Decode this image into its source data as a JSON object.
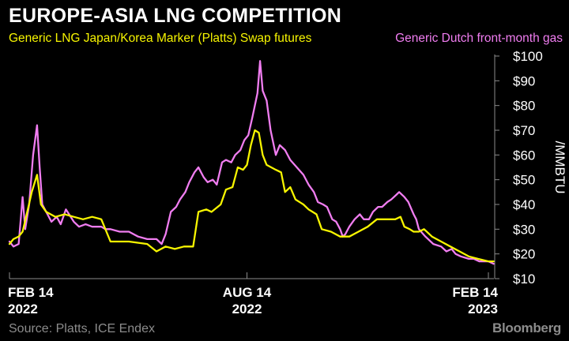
{
  "header": {
    "title": "EUROPE-ASIA LNG COMPETITION"
  },
  "footer": {
    "source": "Source: Platts, ICE Endex",
    "brand": "Bloomberg"
  },
  "colors": {
    "background": "#000000",
    "series_lng": "#f7f500",
    "series_dutch": "#f07df0",
    "axis": "#8c8c8c",
    "text": "#ffffff"
  },
  "chart_data": {
    "type": "line",
    "title": "EUROPE-ASIA LNG COMPETITION",
    "ylabel": "/MMBTU",
    "ylim": [
      10,
      100
    ],
    "y_ticks": [
      "$100",
      "$90",
      "$80",
      "$70",
      "$60",
      "$50",
      "$40",
      "$30",
      "$20",
      "$10"
    ],
    "x_ticks": [
      {
        "label": "FEB 14",
        "sublabel": "2022",
        "date": "2022-02-14"
      },
      {
        "label": "AUG 14",
        "sublabel": "2022",
        "date": "2022-08-14"
      },
      {
        "label": "FEB 14",
        "sublabel": "2023",
        "date": "2023-02-14"
      }
    ],
    "legend_placement": "top",
    "grid": false,
    "series": [
      {
        "name": "Generic LNG Japan/Korea Marker (Platts) Swap futures",
        "color": "#f7f500",
        "points": [
          [
            "2022-02-14",
            24
          ],
          [
            "2022-02-17",
            26
          ],
          [
            "2022-02-21",
            27
          ],
          [
            "2022-02-24",
            29
          ],
          [
            "2022-02-28",
            38
          ],
          [
            "2022-03-03",
            45
          ],
          [
            "2022-03-07",
            52
          ],
          [
            "2022-03-10",
            40
          ],
          [
            "2022-03-14",
            37
          ],
          [
            "2022-03-21",
            35
          ],
          [
            "2022-03-28",
            36
          ],
          [
            "2022-04-04",
            35
          ],
          [
            "2022-04-11",
            34
          ],
          [
            "2022-04-18",
            35
          ],
          [
            "2022-04-25",
            34
          ],
          [
            "2022-05-02",
            25
          ],
          [
            "2022-05-16",
            25
          ],
          [
            "2022-05-30",
            24
          ],
          [
            "2022-06-06",
            21
          ],
          [
            "2022-06-13",
            23
          ],
          [
            "2022-06-20",
            22
          ],
          [
            "2022-06-27",
            23
          ],
          [
            "2022-07-04",
            23
          ],
          [
            "2022-07-08",
            37
          ],
          [
            "2022-07-14",
            38
          ],
          [
            "2022-07-18",
            37
          ],
          [
            "2022-07-25",
            40
          ],
          [
            "2022-07-29",
            46
          ],
          [
            "2022-08-03",
            47
          ],
          [
            "2022-08-07",
            55
          ],
          [
            "2022-08-11",
            54
          ],
          [
            "2022-08-14",
            56
          ],
          [
            "2022-08-17",
            64
          ],
          [
            "2022-08-20",
            70
          ],
          [
            "2022-08-23",
            69
          ],
          [
            "2022-08-26",
            60
          ],
          [
            "2022-08-29",
            56
          ],
          [
            "2022-09-05",
            54
          ],
          [
            "2022-09-09",
            53
          ],
          [
            "2022-09-12",
            45
          ],
          [
            "2022-09-16",
            47
          ],
          [
            "2022-09-20",
            42
          ],
          [
            "2022-09-26",
            40
          ],
          [
            "2022-09-30",
            38
          ],
          [
            "2022-10-03",
            37
          ],
          [
            "2022-10-06",
            36
          ],
          [
            "2022-10-10",
            30
          ],
          [
            "2022-10-17",
            29
          ],
          [
            "2022-10-24",
            27
          ],
          [
            "2022-10-31",
            27
          ],
          [
            "2022-11-07",
            29
          ],
          [
            "2022-11-14",
            31
          ],
          [
            "2022-11-21",
            34
          ],
          [
            "2022-11-28",
            34
          ],
          [
            "2022-12-05",
            34
          ],
          [
            "2022-12-09",
            35
          ],
          [
            "2022-12-12",
            31
          ],
          [
            "2022-12-16",
            30
          ],
          [
            "2022-12-19",
            29
          ],
          [
            "2022-12-23",
            29
          ],
          [
            "2022-12-27",
            30
          ],
          [
            "2023-01-02",
            27
          ],
          [
            "2023-01-09",
            25
          ],
          [
            "2023-01-16",
            23
          ],
          [
            "2023-01-23",
            21
          ],
          [
            "2023-01-30",
            19
          ],
          [
            "2023-02-06",
            18
          ],
          [
            "2023-02-14",
            17
          ],
          [
            "2023-02-18",
            17
          ]
        ]
      },
      {
        "name": "Generic Dutch front-month gas",
        "color": "#f07df0",
        "points": [
          [
            "2022-02-14",
            25
          ],
          [
            "2022-02-17",
            23
          ],
          [
            "2022-02-21",
            24
          ],
          [
            "2022-02-24",
            43
          ],
          [
            "2022-02-26",
            30
          ],
          [
            "2022-03-01",
            40
          ],
          [
            "2022-03-04",
            60
          ],
          [
            "2022-03-07",
            72
          ],
          [
            "2022-03-09",
            55
          ],
          [
            "2022-03-11",
            40
          ],
          [
            "2022-03-15",
            36
          ],
          [
            "2022-03-18",
            33
          ],
          [
            "2022-03-22",
            35
          ],
          [
            "2022-03-25",
            32
          ],
          [
            "2022-03-29",
            38
          ],
          [
            "2022-04-04",
            33
          ],
          [
            "2022-04-08",
            31
          ],
          [
            "2022-04-13",
            32
          ],
          [
            "2022-04-18",
            31
          ],
          [
            "2022-04-25",
            31
          ],
          [
            "2022-04-28",
            30
          ],
          [
            "2022-05-02",
            30
          ],
          [
            "2022-05-09",
            29
          ],
          [
            "2022-05-16",
            29
          ],
          [
            "2022-05-23",
            27
          ],
          [
            "2022-05-30",
            26
          ],
          [
            "2022-06-06",
            26
          ],
          [
            "2022-06-10",
            24
          ],
          [
            "2022-06-13",
            28
          ],
          [
            "2022-06-17",
            37
          ],
          [
            "2022-06-21",
            39
          ],
          [
            "2022-06-24",
            42
          ],
          [
            "2022-06-28",
            45
          ],
          [
            "2022-07-01",
            49
          ],
          [
            "2022-07-05",
            53
          ],
          [
            "2022-07-08",
            55
          ],
          [
            "2022-07-12",
            51
          ],
          [
            "2022-07-15",
            49
          ],
          [
            "2022-07-19",
            50
          ],
          [
            "2022-07-22",
            48
          ],
          [
            "2022-07-26",
            57
          ],
          [
            "2022-07-29",
            58
          ],
          [
            "2022-08-02",
            57
          ],
          [
            "2022-08-05",
            60
          ],
          [
            "2022-08-09",
            62
          ],
          [
            "2022-08-12",
            66
          ],
          [
            "2022-08-15",
            68
          ],
          [
            "2022-08-18",
            75
          ],
          [
            "2022-08-22",
            85
          ],
          [
            "2022-08-24",
            98
          ],
          [
            "2022-08-26",
            86
          ],
          [
            "2022-08-29",
            82
          ],
          [
            "2022-09-01",
            70
          ],
          [
            "2022-09-05",
            60
          ],
          [
            "2022-09-08",
            64
          ],
          [
            "2022-09-12",
            62
          ],
          [
            "2022-09-16",
            58
          ],
          [
            "2022-09-21",
            55
          ],
          [
            "2022-09-26",
            52
          ],
          [
            "2022-09-30",
            48
          ],
          [
            "2022-10-04",
            45
          ],
          [
            "2022-10-07",
            41
          ],
          [
            "2022-10-11",
            40
          ],
          [
            "2022-10-14",
            39
          ],
          [
            "2022-10-18",
            34
          ],
          [
            "2022-10-21",
            33
          ],
          [
            "2022-10-24",
            30
          ],
          [
            "2022-10-26",
            27
          ],
          [
            "2022-10-28",
            28
          ],
          [
            "2022-10-31",
            31
          ],
          [
            "2022-11-04",
            34
          ],
          [
            "2022-11-08",
            36
          ],
          [
            "2022-11-11",
            34
          ],
          [
            "2022-11-15",
            34
          ],
          [
            "2022-11-18",
            37
          ],
          [
            "2022-11-22",
            39
          ],
          [
            "2022-11-25",
            39
          ],
          [
            "2022-11-29",
            41
          ],
          [
            "2022-12-02",
            42
          ],
          [
            "2022-12-06",
            44
          ],
          [
            "2022-12-08",
            45
          ],
          [
            "2022-12-12",
            43
          ],
          [
            "2022-12-15",
            41
          ],
          [
            "2022-12-19",
            36
          ],
          [
            "2022-12-21",
            34
          ],
          [
            "2022-12-23",
            30
          ],
          [
            "2022-12-28",
            27
          ],
          [
            "2023-01-03",
            24
          ],
          [
            "2023-01-09",
            23
          ],
          [
            "2023-01-13",
            21
          ],
          [
            "2023-01-17",
            22
          ],
          [
            "2023-01-20",
            20
          ],
          [
            "2023-01-24",
            19
          ],
          [
            "2023-01-30",
            18
          ],
          [
            "2023-02-03",
            18
          ],
          [
            "2023-02-07",
            17
          ],
          [
            "2023-02-14",
            17
          ],
          [
            "2023-02-18",
            16
          ]
        ]
      }
    ]
  }
}
